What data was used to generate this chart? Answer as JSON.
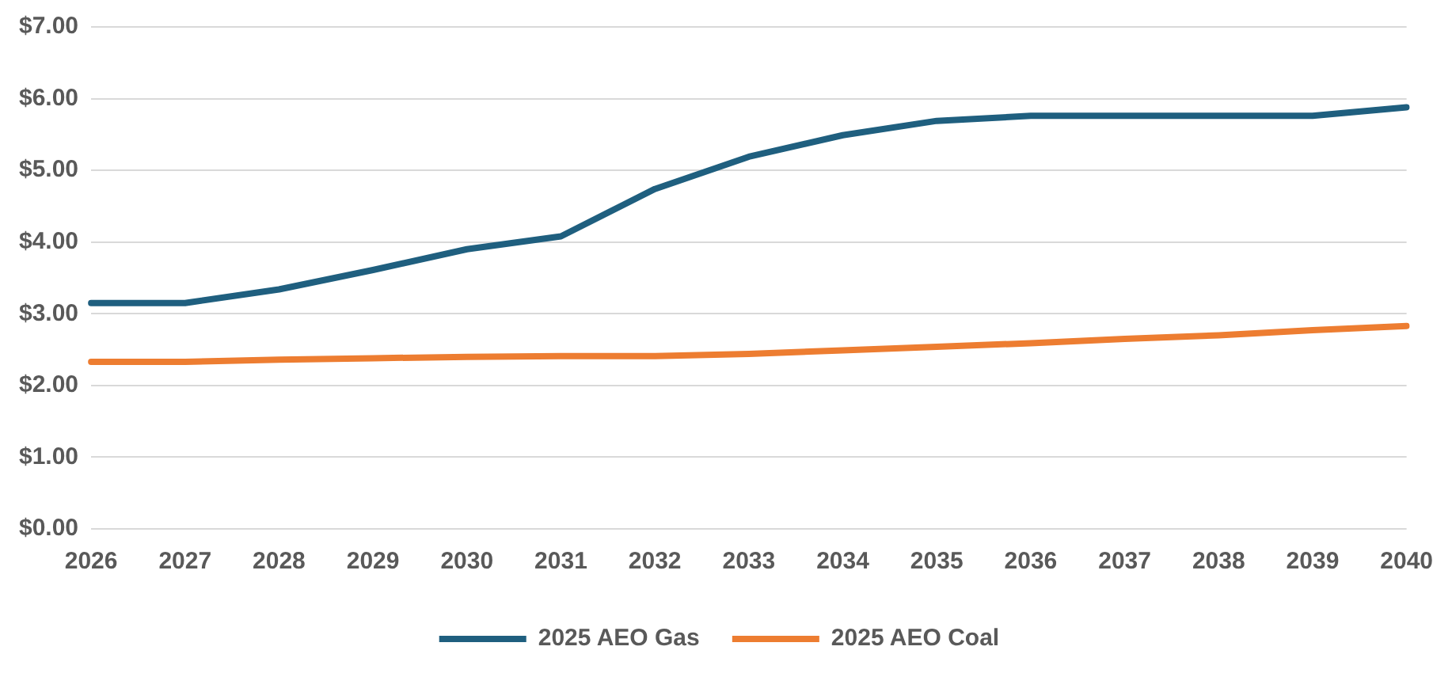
{
  "chart_data": {
    "type": "line",
    "categories": [
      "2026",
      "2027",
      "2028",
      "2029",
      "2030",
      "2031",
      "2032",
      "2033",
      "2034",
      "2035",
      "2036",
      "2037",
      "2038",
      "2039",
      "2040"
    ],
    "series": [
      {
        "name": "2025 AEO Gas",
        "color": "#1f5f7f",
        "values": [
          3.15,
          3.15,
          3.34,
          3.61,
          3.9,
          4.08,
          4.74,
          5.19,
          5.49,
          5.69,
          5.76,
          5.76,
          5.76,
          5.76,
          5.88
        ]
      },
      {
        "name": "2025 AEO Coal",
        "color": "#ed7d31",
        "values": [
          2.33,
          2.33,
          2.36,
          2.38,
          2.4,
          2.41,
          2.41,
          2.44,
          2.49,
          2.54,
          2.59,
          2.65,
          2.7,
          2.77,
          2.83
        ]
      }
    ],
    "ylim": [
      0,
      7
    ],
    "yticks": [
      {
        "value": 0,
        "label": "$0.00"
      },
      {
        "value": 1,
        "label": "$1.00"
      },
      {
        "value": 2,
        "label": "$2.00"
      },
      {
        "value": 3,
        "label": "$3.00"
      },
      {
        "value": 4,
        "label": "$4.00"
      },
      {
        "value": 5,
        "label": "$5.00"
      },
      {
        "value": 6,
        "label": "$6.00"
      },
      {
        "value": 7,
        "label": "$7.00"
      }
    ],
    "grid": "y",
    "legend": "bottom",
    "marker": "none",
    "line_style": "solid"
  }
}
